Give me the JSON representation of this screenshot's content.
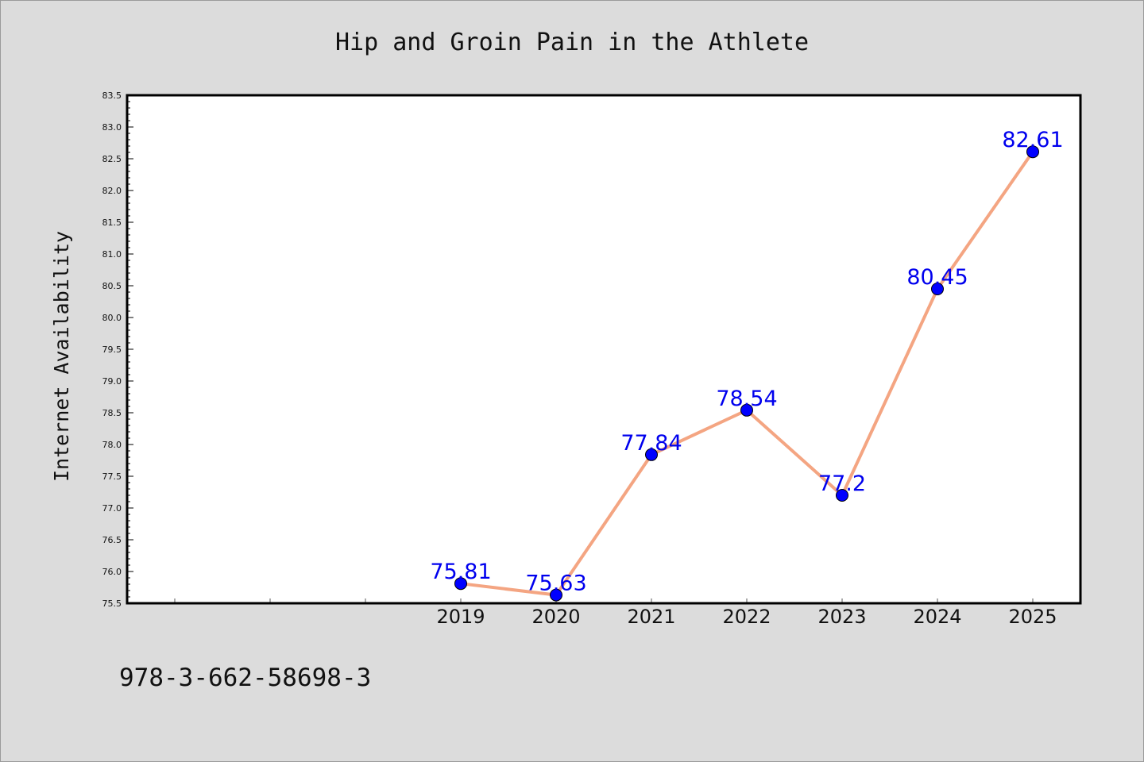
{
  "chart_data": {
    "type": "line",
    "title": "Hip and Groin Pain in the Athlete",
    "xlabel": "",
    "ylabel": "Internet Availability",
    "categories": [
      "2019",
      "2020",
      "2021",
      "2022",
      "2023",
      "2024",
      "2025"
    ],
    "series": [
      {
        "values": [
          75.81,
          75.63,
          77.84,
          78.54,
          77.2,
          80.45,
          82.61
        ],
        "labels": [
          "75.81",
          "75.63",
          "77.84",
          "78.54",
          "77.2",
          "80.45",
          "82.61"
        ],
        "line_color": "#f4a582",
        "marker_color": "#0000ff"
      }
    ],
    "yticks": [
      "75.5",
      "76.0",
      "76.5",
      "77.0",
      "77.5",
      "78.0",
      "78.5",
      "79.0",
      "79.5",
      "80.0",
      "80.5",
      "81.0",
      "81.5",
      "82.0",
      "82.5",
      "83.0",
      "83.5"
    ],
    "ylim": [
      75.5,
      83.5
    ],
    "grid": false,
    "legend": "none"
  },
  "footnote": "978-3-662-58698-3",
  "colors": {
    "background": "#dcdcdc",
    "plot_background": "#ffffff",
    "label_color": "#0000ee"
  }
}
